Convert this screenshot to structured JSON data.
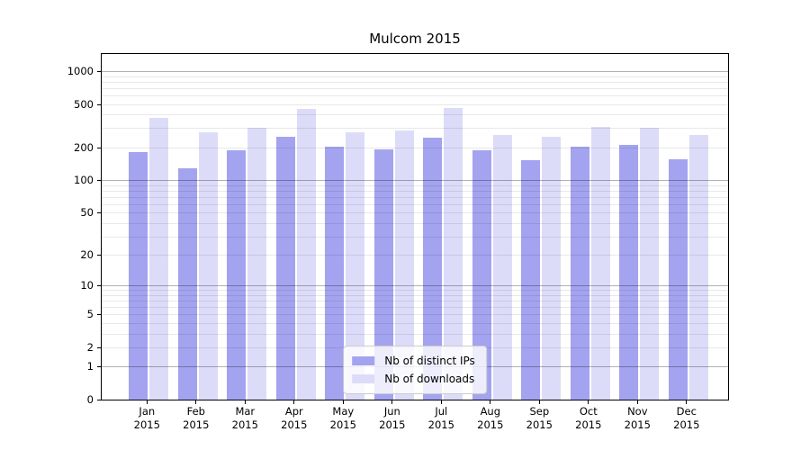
{
  "chart_data": {
    "type": "bar",
    "title": "Mulcom 2015",
    "categories": [
      "Jan",
      "Feb",
      "Mar",
      "Apr",
      "May",
      "Jun",
      "Jul",
      "Aug",
      "Sep",
      "Oct",
      "Nov",
      "Dec"
    ],
    "year_label": "2015",
    "series": [
      {
        "name": "Nb of distinct IPs",
        "color": "#a3a3ef",
        "values": [
          182,
          128,
          188,
          250,
          202,
          193,
          246,
          187,
          153,
          203,
          210,
          156
        ]
      },
      {
        "name": "Nb of downloads",
        "color": "#dcdcf9",
        "values": [
          374,
          274,
          303,
          448,
          276,
          286,
          456,
          258,
          252,
          306,
          301,
          262
        ]
      }
    ],
    "xlabel": "",
    "ylabel": "",
    "y_scale": "log1p",
    "y_ticks": [
      0,
      1,
      2,
      5,
      10,
      20,
      50,
      100,
      200,
      500,
      1000
    ],
    "ylim": [
      0,
      1440
    ],
    "grid": {
      "major_lines": [
        1,
        10,
        100,
        1000
      ],
      "major_color": "rgba(0,0,0,0.30)",
      "minor_color": "rgba(0,0,0,0.09)"
    },
    "legend_position": "lower center"
  }
}
